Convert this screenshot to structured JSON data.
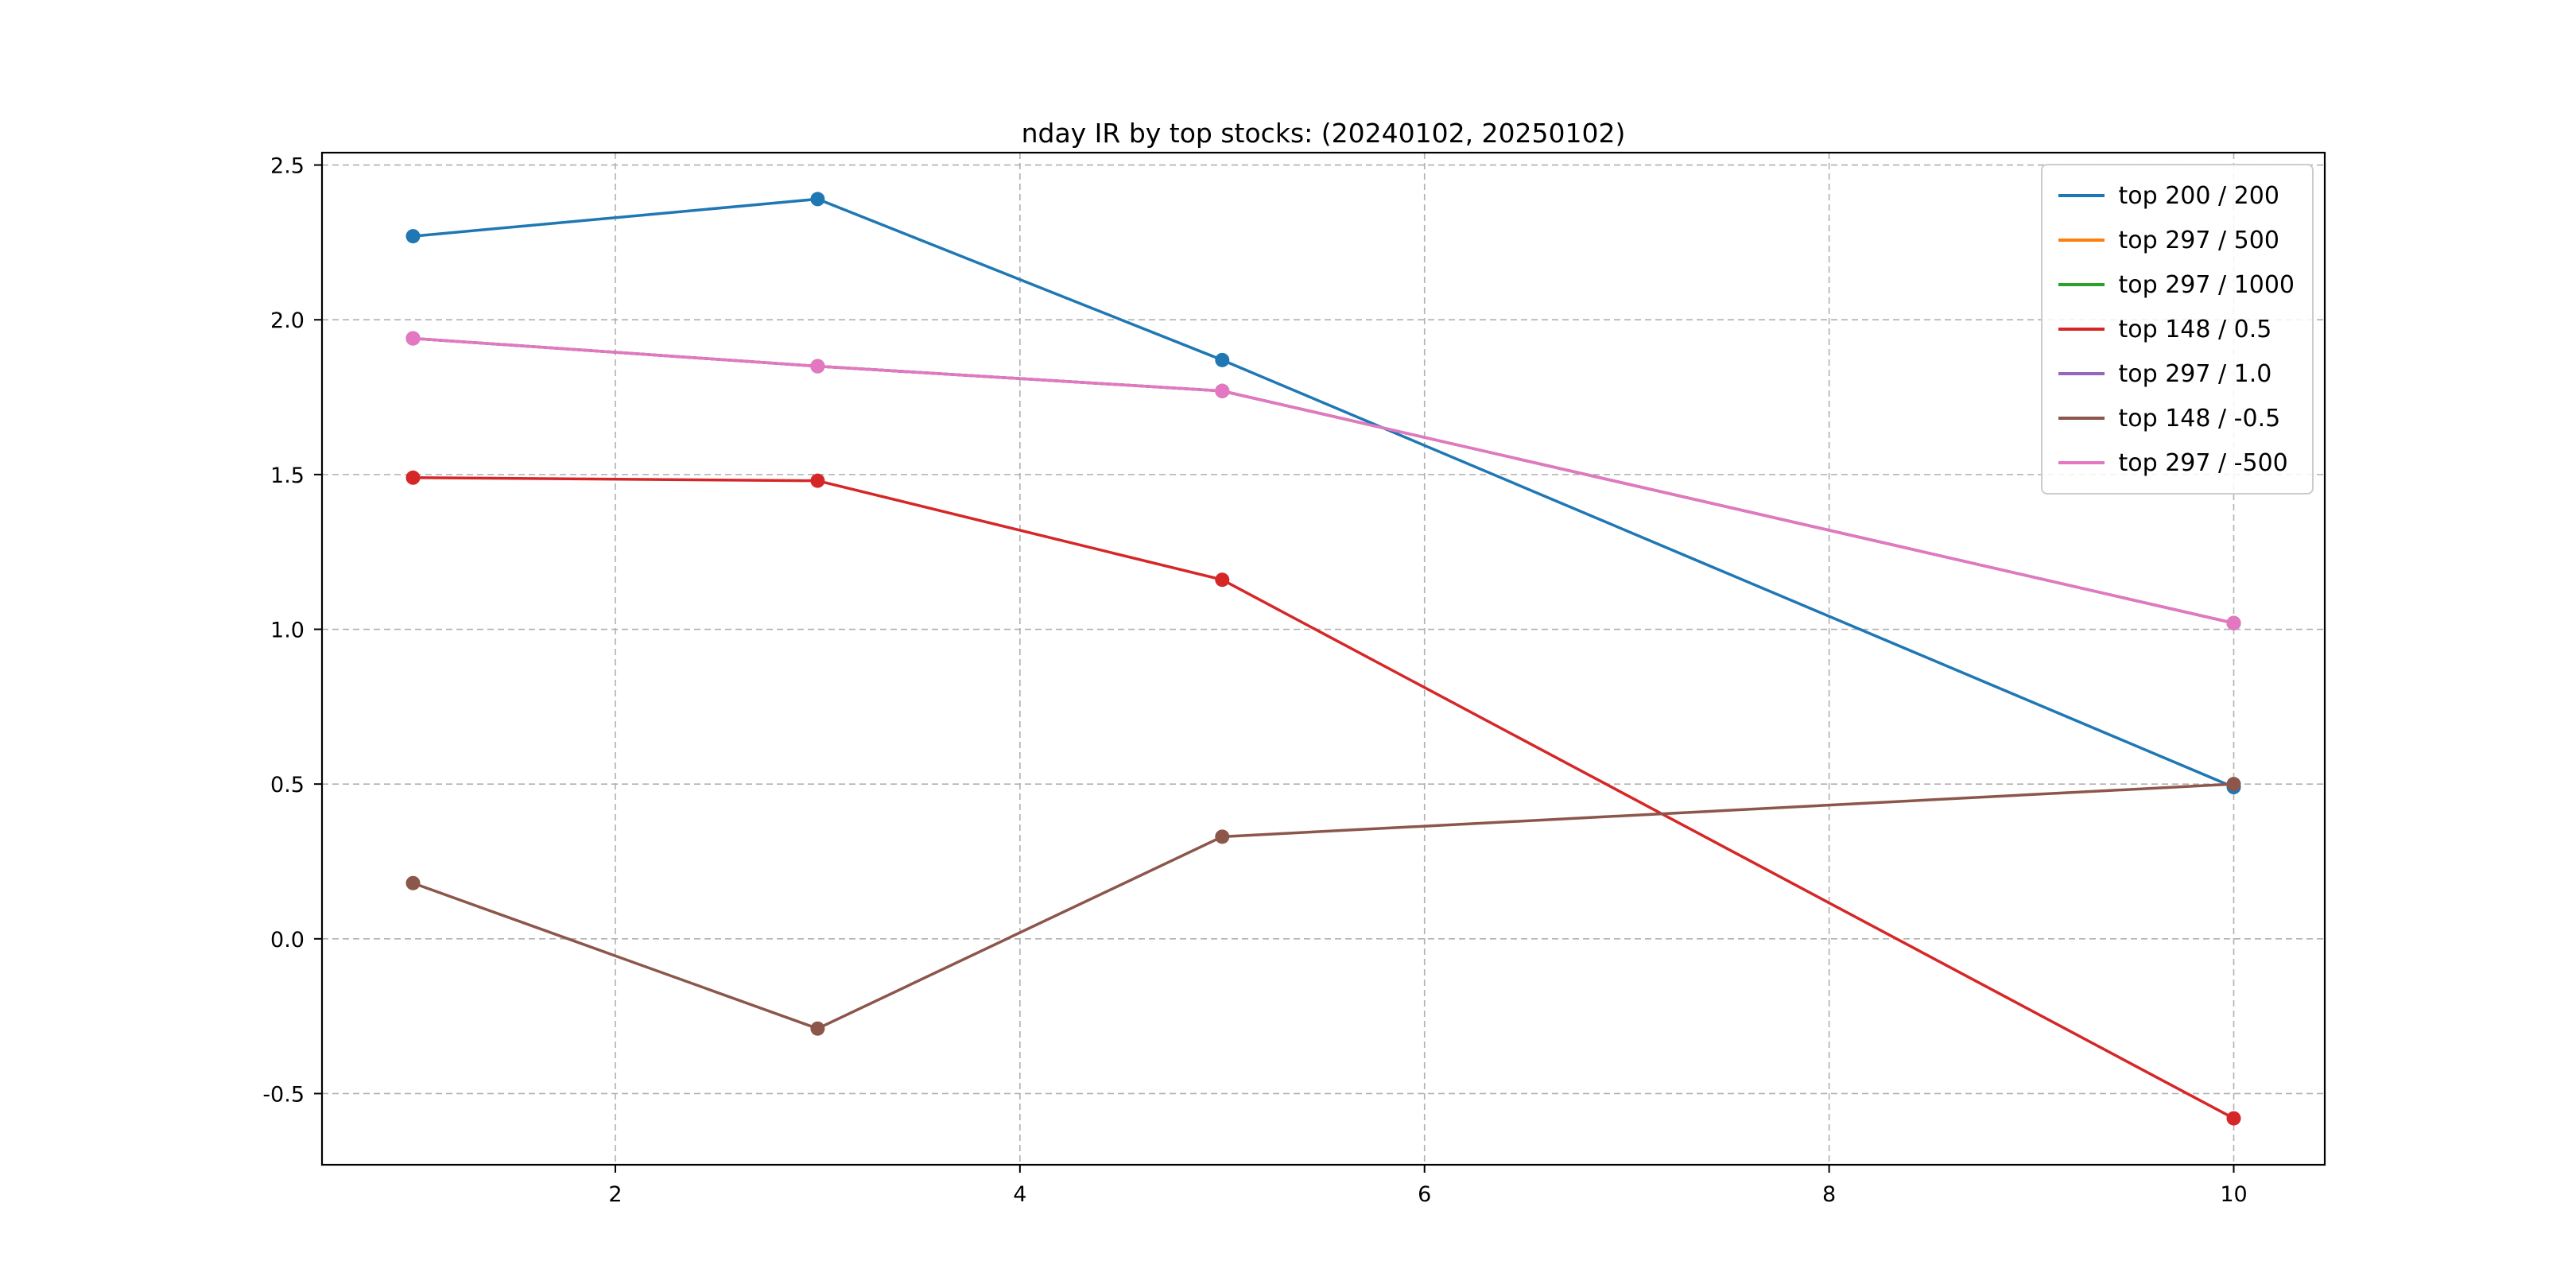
{
  "chart_data": {
    "type": "line",
    "title": "nday IR by top stocks: (20240102, 20250102)",
    "x": [
      1,
      3,
      5,
      10
    ],
    "series": [
      {
        "name": "top 200 / 200",
        "color": "#1f77b4",
        "values": [
          2.27,
          2.39,
          1.87,
          0.49
        ]
      },
      {
        "name": "top 297 / 500",
        "color": "#ff7f0e",
        "values": [
          1.94,
          1.85,
          1.77,
          1.02
        ]
      },
      {
        "name": "top 297 / 1000",
        "color": "#2ca02c",
        "values": [
          1.94,
          1.85,
          1.77,
          1.02
        ]
      },
      {
        "name": "top 148 / 0.5",
        "color": "#d62728",
        "values": [
          1.49,
          1.48,
          1.16,
          -0.58
        ]
      },
      {
        "name": "top 297 / 1.0",
        "color": "#9467bd",
        "values": [
          1.94,
          1.85,
          1.77,
          1.02
        ]
      },
      {
        "name": "top 148 / -0.5",
        "color": "#8c564b",
        "values": [
          0.18,
          -0.29,
          0.33,
          0.5
        ]
      },
      {
        "name": "top 297 / -500",
        "color": "#e377c2",
        "values": [
          1.94,
          1.85,
          1.77,
          1.02
        ]
      }
    ],
    "xlim": [
      0.55,
      10.45
    ],
    "ylim": [
      -0.73,
      2.54
    ],
    "x_ticks": [
      2,
      4,
      6,
      8,
      10
    ],
    "x_tick_labels": [
      "2",
      "4",
      "6",
      "8",
      "10"
    ],
    "y_ticks": [
      -0.5,
      0.0,
      0.5,
      1.0,
      1.5,
      2.0,
      2.5
    ],
    "y_tick_labels": [
      "-0.5",
      "0.0",
      "0.5",
      "1.0",
      "1.5",
      "2.0",
      "2.5"
    ],
    "grid": true,
    "grid_color": "#b0b0b0",
    "frame_color": "#000000",
    "legend_position": "upper right"
  }
}
